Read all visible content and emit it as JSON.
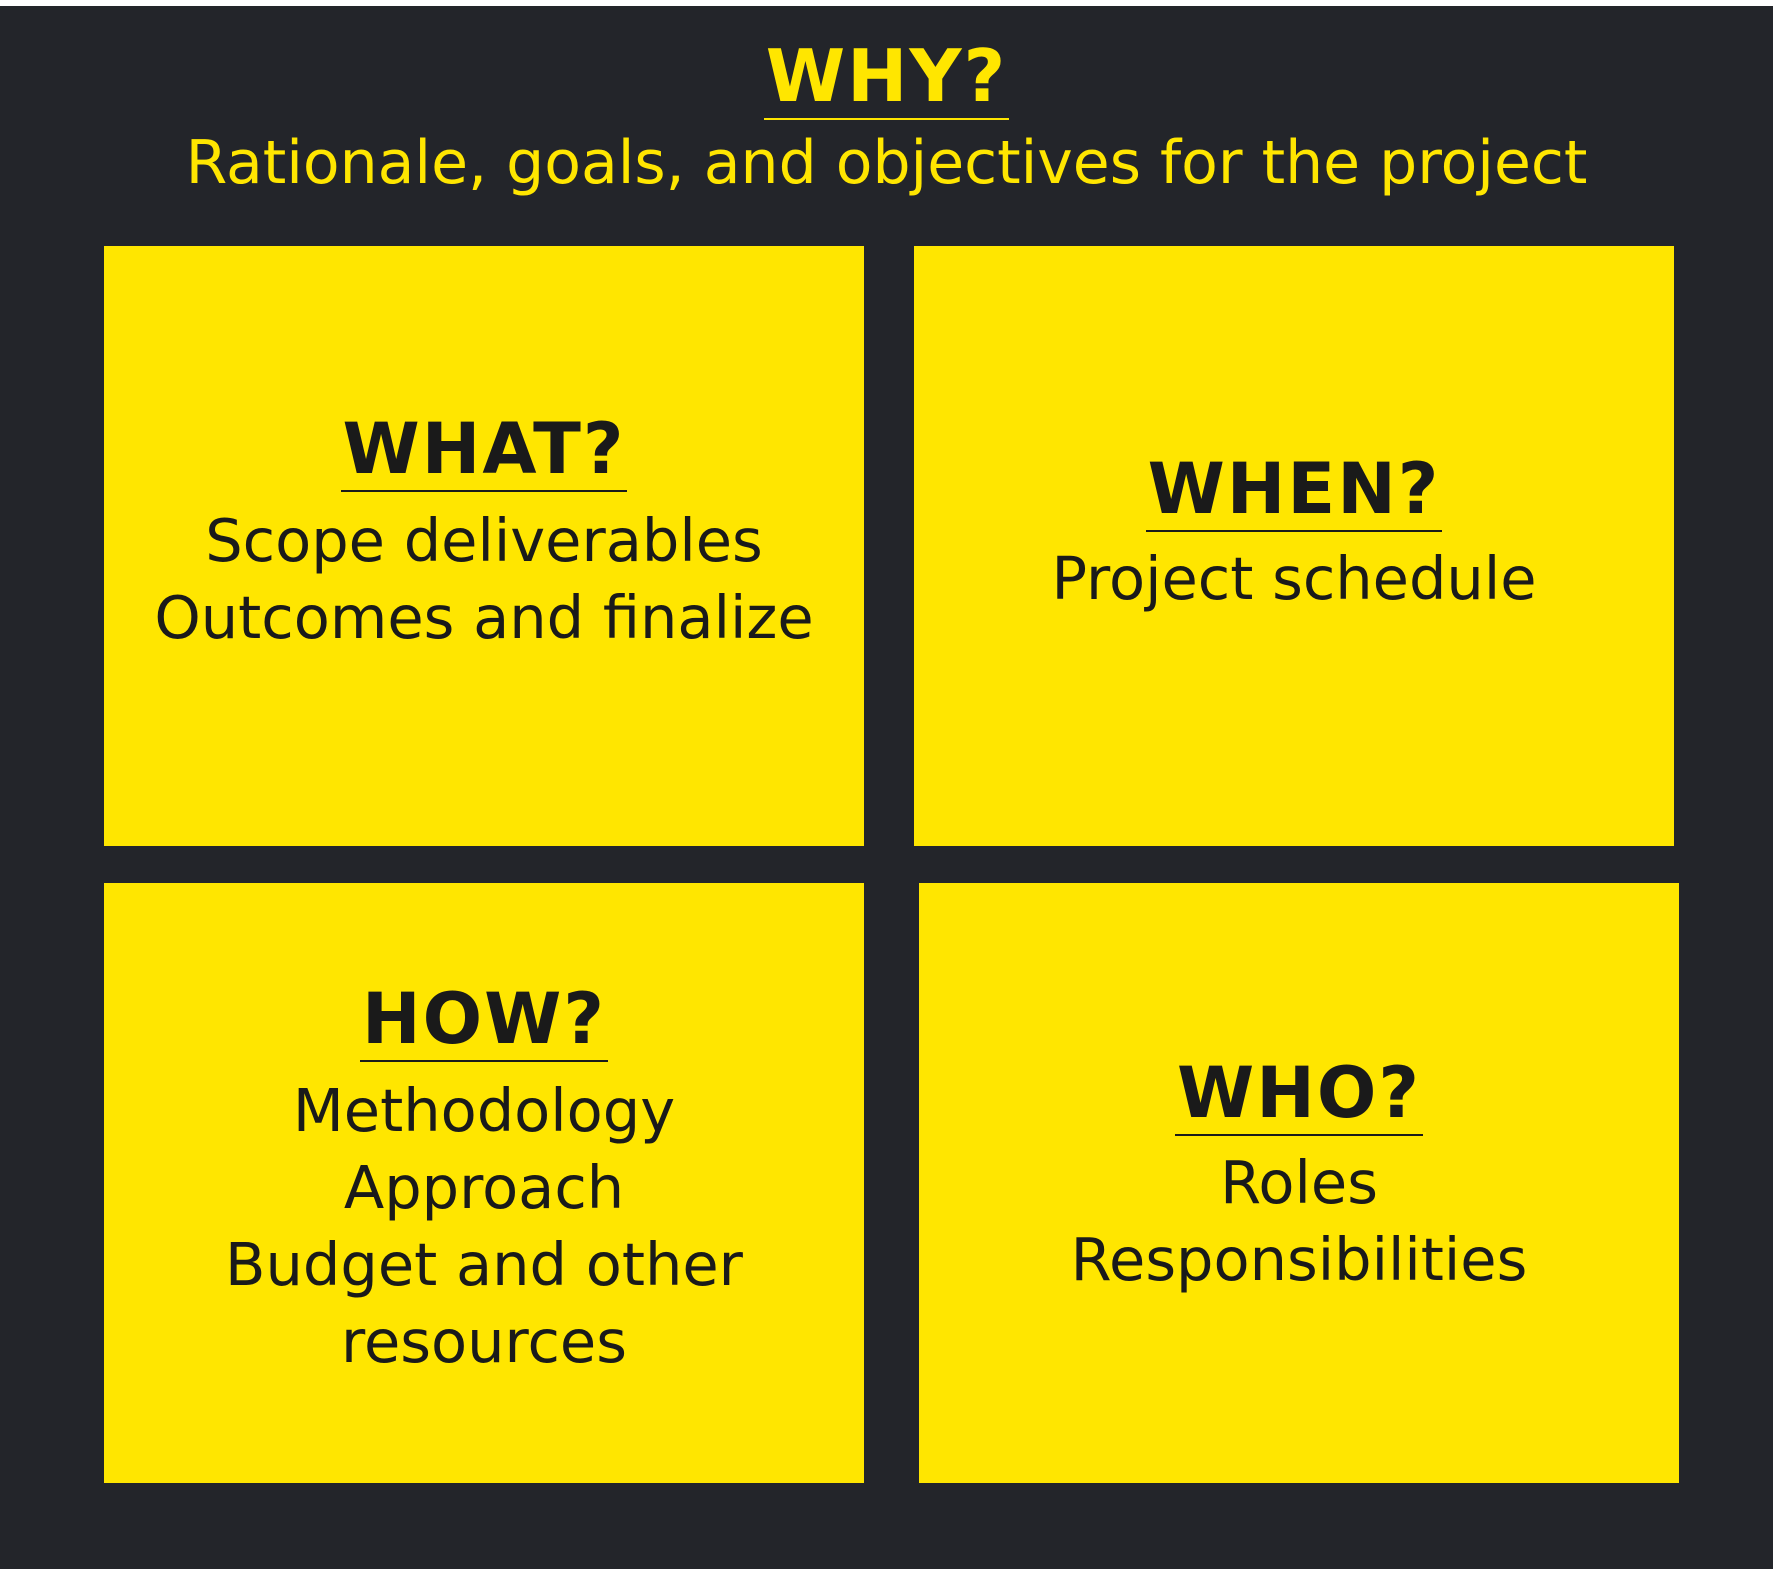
{
  "why": {
    "title": "WHY?",
    "subtitle": "Rationale, goals, and objectives for the project"
  },
  "cards": {
    "what": {
      "title": "WHAT?",
      "lines": [
        "Scope deliverables",
        "Outcomes and finalize"
      ]
    },
    "when": {
      "title": "WHEN?",
      "lines": [
        "Project schedule"
      ]
    },
    "how": {
      "title": "HOW?",
      "lines": [
        "Methodology",
        "Approach",
        "Budget and other",
        "resources"
      ]
    },
    "who": {
      "title": "WHO?",
      "lines": [
        "Roles",
        "Responsibilities"
      ]
    }
  },
  "colors": {
    "background": "#23252a",
    "accent": "#ffe600",
    "text_dark": "#1a1a1a"
  }
}
